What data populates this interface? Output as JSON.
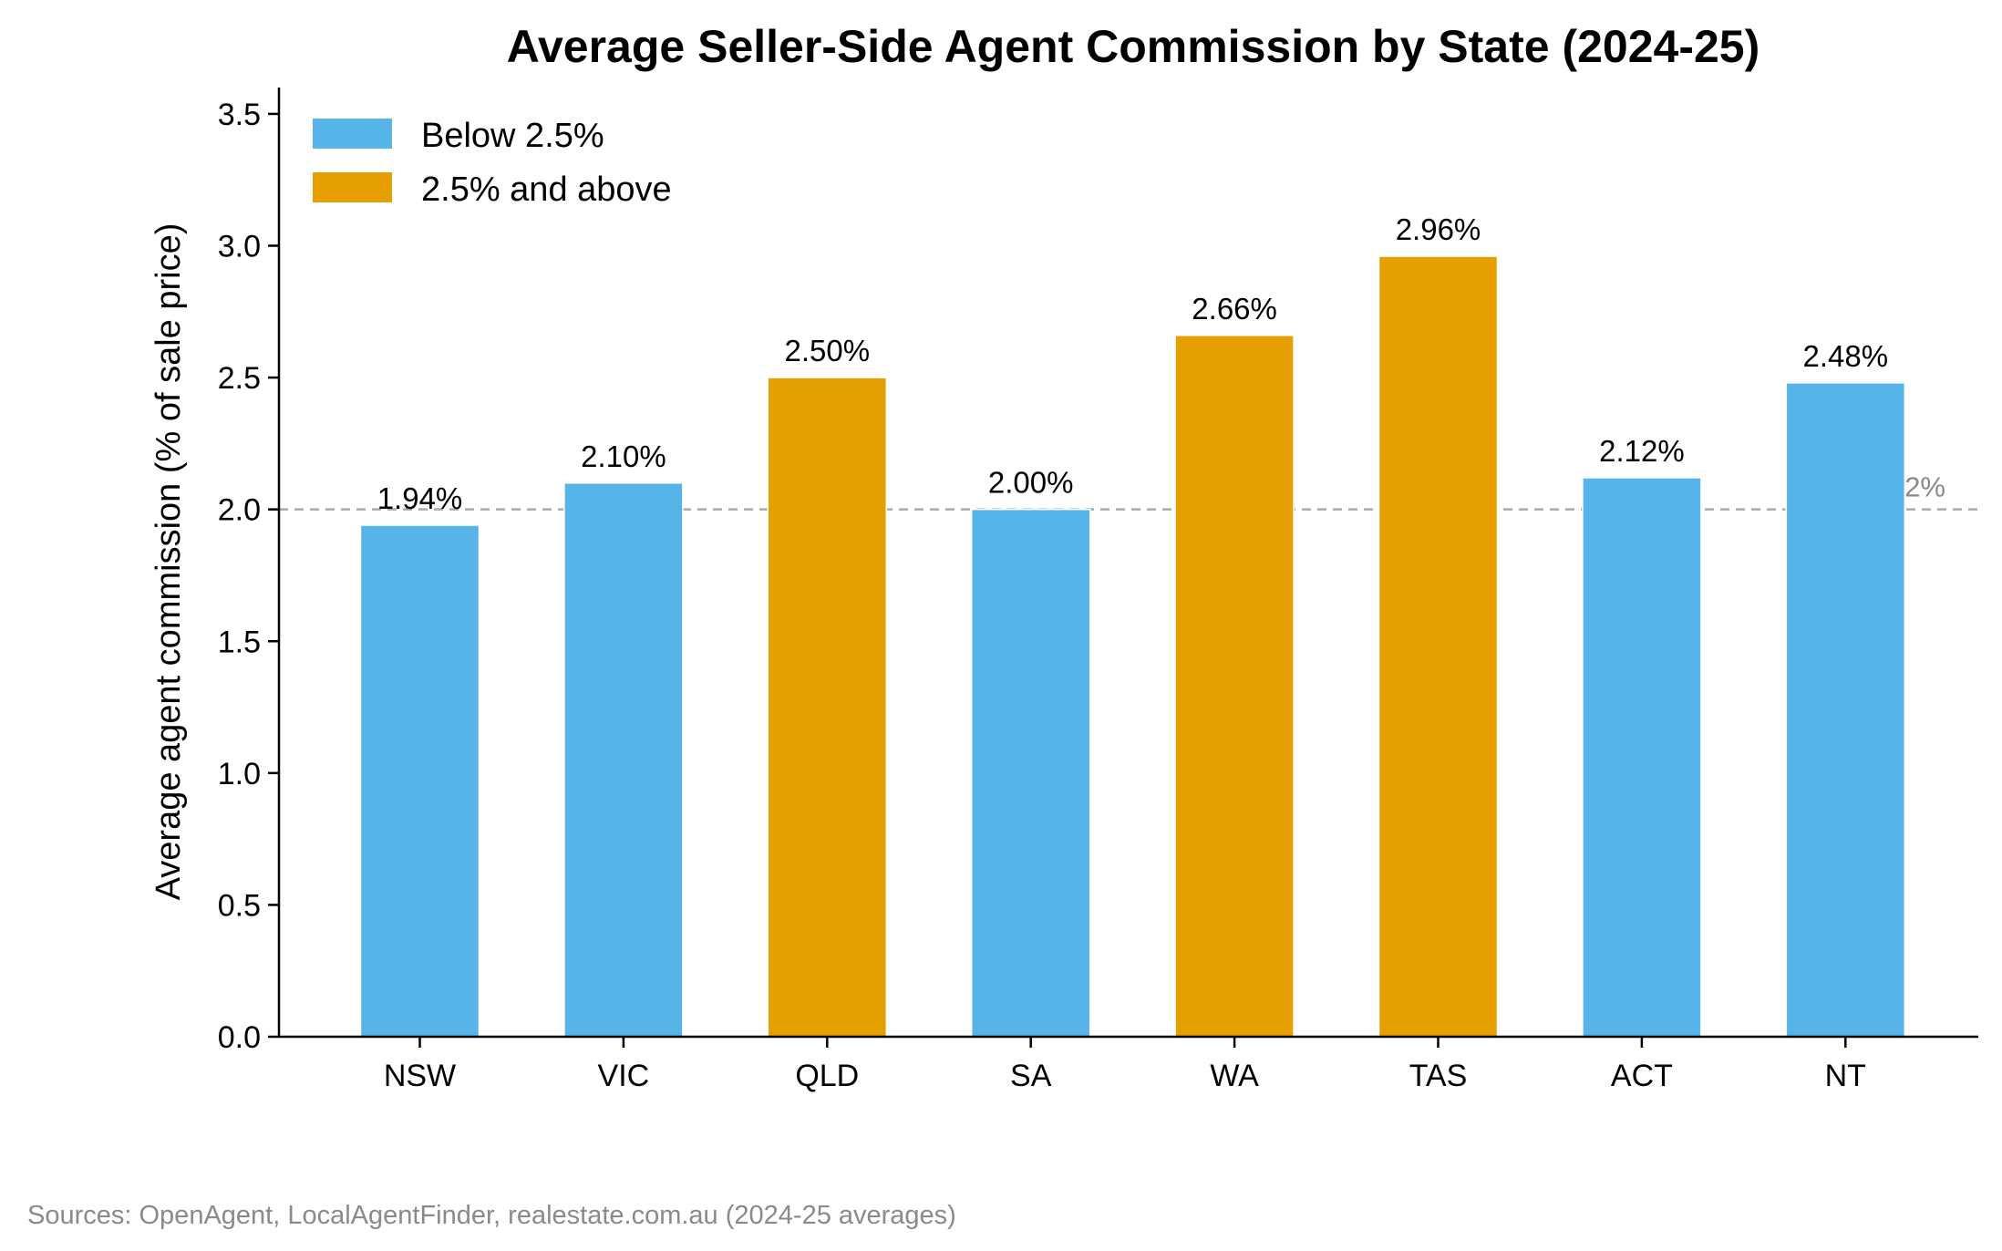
{
  "chart_data": {
    "type": "bar",
    "title": "Average Seller-Side Agent Commission by State (2024-25)",
    "xlabel": "",
    "ylabel": "Average agent commission (% of sale price)",
    "categories": [
      "NSW",
      "VIC",
      "QLD",
      "SA",
      "WA",
      "TAS",
      "ACT",
      "NT"
    ],
    "values": [
      1.94,
      2.1,
      2.5,
      2.0,
      2.66,
      2.96,
      2.12,
      2.48
    ],
    "data_labels": [
      "1.94%",
      "2.10%",
      "2.50%",
      "2.00%",
      "2.66%",
      "2.96%",
      "2.12%",
      "2.48%"
    ],
    "groups": [
      "Below 2.5%",
      "Below 2.5%",
      "2.5% and above",
      "Below 2.5%",
      "2.5% and above",
      "2.5% and above",
      "Below 2.5%",
      "Below 2.5%"
    ],
    "ylim": [
      0,
      3.6
    ],
    "yticks": [
      0.0,
      0.5,
      1.0,
      1.5,
      2.0,
      2.5,
      3.0,
      3.5
    ],
    "ytick_labels": [
      "0.0",
      "0.5",
      "1.0",
      "1.5",
      "2.0",
      "2.5",
      "3.0",
      "3.5"
    ],
    "grid": false,
    "legend": {
      "position": "top-left",
      "entries": [
        {
          "label": "Below 2.5%",
          "color": "#56B4E9"
        },
        {
          "label": "2.5% and above",
          "color": "#E69F00"
        }
      ]
    },
    "reference_line": {
      "value": 2.0,
      "label": "Avg 2%",
      "color": "#aaaaaa",
      "style": "dashed"
    },
    "colors": {
      "Below 2.5%": "#56B4E9",
      "2.5% and above": "#E69F00"
    },
    "footnote": "Sources: OpenAgent, LocalAgentFinder, realestate.com.au (2024-25 averages)"
  }
}
